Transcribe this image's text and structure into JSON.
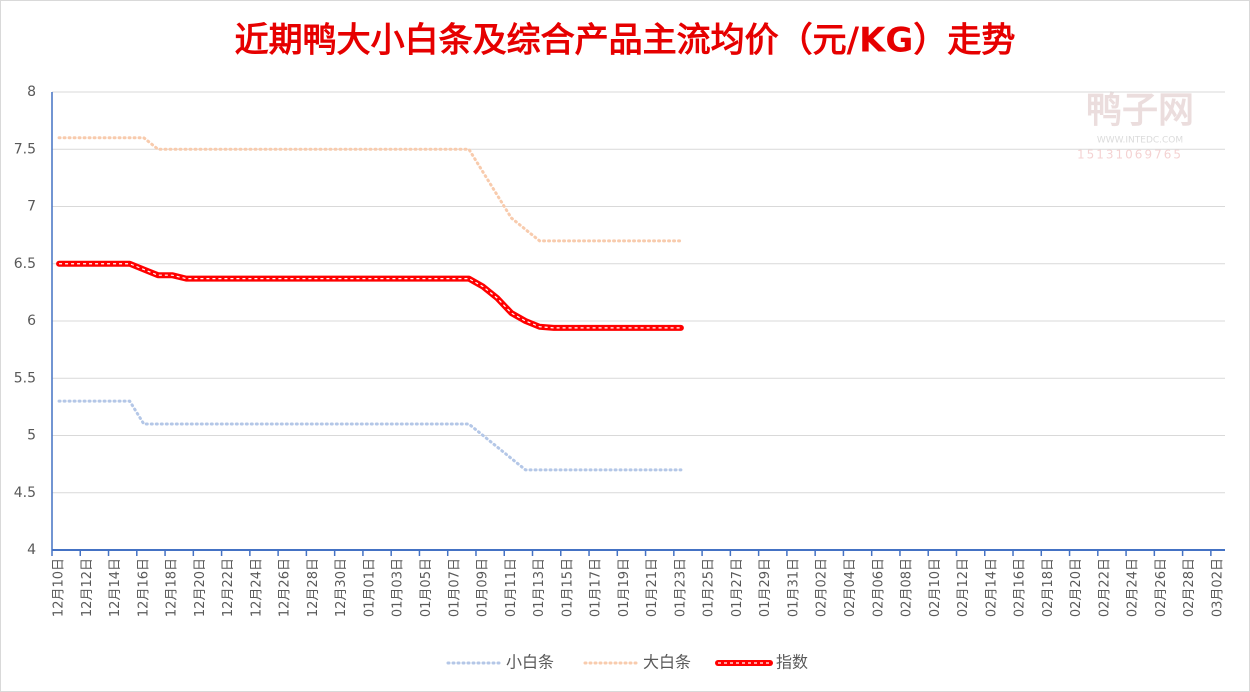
{
  "chart_data": {
    "type": "line",
    "title": "近期鸭大小白条及综合产品主流均价（元/KG）走势",
    "categories": [
      "12月10日",
      null,
      "12月12日",
      null,
      "12月14日",
      null,
      "12月16日",
      null,
      "12月18日",
      null,
      "12月20日",
      null,
      "12月22日",
      null,
      "12月24日",
      null,
      "12月26日",
      null,
      "12月28日",
      null,
      "12月30日",
      null,
      "01月01日",
      null,
      "01月03日",
      null,
      "01月05日",
      null,
      "01月07日",
      null,
      "01月09日",
      null,
      "01月11日",
      null,
      "01月13日",
      null,
      "01月15日",
      null,
      "01月17日",
      null,
      "01月19日",
      null,
      "01月21日",
      null,
      "01月23日",
      null,
      "01月25日",
      null,
      "01月27日",
      null,
      "01月29日",
      null,
      "01月31日",
      null,
      "02月02日",
      null,
      "02月04日",
      null,
      "02月06日",
      null,
      "02月08日",
      null,
      "02月10日",
      null,
      "02月12日",
      null,
      "02月14日",
      null,
      "02月16日",
      null,
      "02月18日",
      null,
      "02月20日",
      null,
      "02月22日",
      null,
      "02月24日",
      null,
      "02月26日",
      null,
      "02月28日",
      null,
      "03月02日"
    ],
    "series": [
      {
        "name": "小白条",
        "color": "#b4c7e7",
        "style": "dotted",
        "values": [
          5.3,
          5.3,
          5.3,
          5.3,
          5.3,
          5.3,
          5.1,
          5.1,
          5.1,
          5.1,
          5.1,
          5.1,
          5.1,
          5.1,
          5.1,
          5.1,
          5.1,
          5.1,
          5.1,
          5.1,
          5.1,
          5.1,
          5.1,
          5.1,
          5.1,
          5.1,
          5.1,
          5.1,
          5.1,
          5.1,
          5.0,
          4.9,
          4.8,
          4.7,
          4.7,
          4.7,
          4.7,
          4.7,
          4.7,
          4.7,
          4.7,
          4.7,
          4.7,
          4.7,
          4.7,
          null,
          null,
          null,
          null,
          null,
          null,
          null,
          null,
          null,
          null,
          null,
          null,
          null,
          null,
          null,
          null,
          null,
          null,
          null,
          null,
          null,
          null,
          null,
          null,
          null,
          null,
          null,
          null,
          null,
          null,
          null,
          null,
          null,
          null,
          null,
          null,
          null,
          null
        ]
      },
      {
        "name": "大白条",
        "color": "#f8cbad",
        "style": "dotted",
        "values": [
          7.6,
          7.6,
          7.6,
          7.6,
          7.6,
          7.6,
          7.6,
          7.5,
          7.5,
          7.5,
          7.5,
          7.5,
          7.5,
          7.5,
          7.5,
          7.5,
          7.5,
          7.5,
          7.5,
          7.5,
          7.5,
          7.5,
          7.5,
          7.5,
          7.5,
          7.5,
          7.5,
          7.5,
          7.5,
          7.5,
          7.3,
          7.1,
          6.9,
          6.8,
          6.7,
          6.7,
          6.7,
          6.7,
          6.7,
          6.7,
          6.7,
          6.7,
          6.7,
          6.7,
          6.7,
          null,
          null,
          null,
          null,
          null,
          null,
          null,
          null,
          null,
          null,
          null,
          null,
          null,
          null,
          null,
          null,
          null,
          null,
          null,
          null,
          null,
          null,
          null,
          null,
          null,
          null,
          null,
          null,
          null,
          null,
          null,
          null,
          null,
          null,
          null,
          null,
          null,
          null
        ]
      },
      {
        "name": "指数",
        "color": "#ff0000",
        "style": "bold",
        "values": [
          6.5,
          6.5,
          6.5,
          6.5,
          6.5,
          6.5,
          6.45,
          6.4,
          6.4,
          6.37,
          6.37,
          6.37,
          6.37,
          6.37,
          6.37,
          6.37,
          6.37,
          6.37,
          6.37,
          6.37,
          6.37,
          6.37,
          6.37,
          6.37,
          6.37,
          6.37,
          6.37,
          6.37,
          6.37,
          6.37,
          6.3,
          6.2,
          6.07,
          6.0,
          5.95,
          5.94,
          5.94,
          5.94,
          5.94,
          5.94,
          5.94,
          5.94,
          5.94,
          5.94,
          5.94,
          null,
          null,
          null,
          null,
          null,
          null,
          null,
          null,
          null,
          null,
          null,
          null,
          null,
          null,
          null,
          null,
          null,
          null,
          null,
          null,
          null,
          null,
          null,
          null,
          null,
          null,
          null,
          null,
          null,
          null,
          null,
          null,
          null,
          null,
          null,
          null,
          null,
          null
        ]
      }
    ],
    "ylim": [
      4,
      8
    ],
    "yticks": [
      4,
      4.5,
      5,
      5.5,
      6,
      6.5,
      7,
      7.5,
      8
    ],
    "grid": true,
    "legend": "bottom"
  },
  "watermark": {
    "title": "鸭子网",
    "url": "WWW.INTEDC.COM",
    "phone": "15131069765"
  }
}
